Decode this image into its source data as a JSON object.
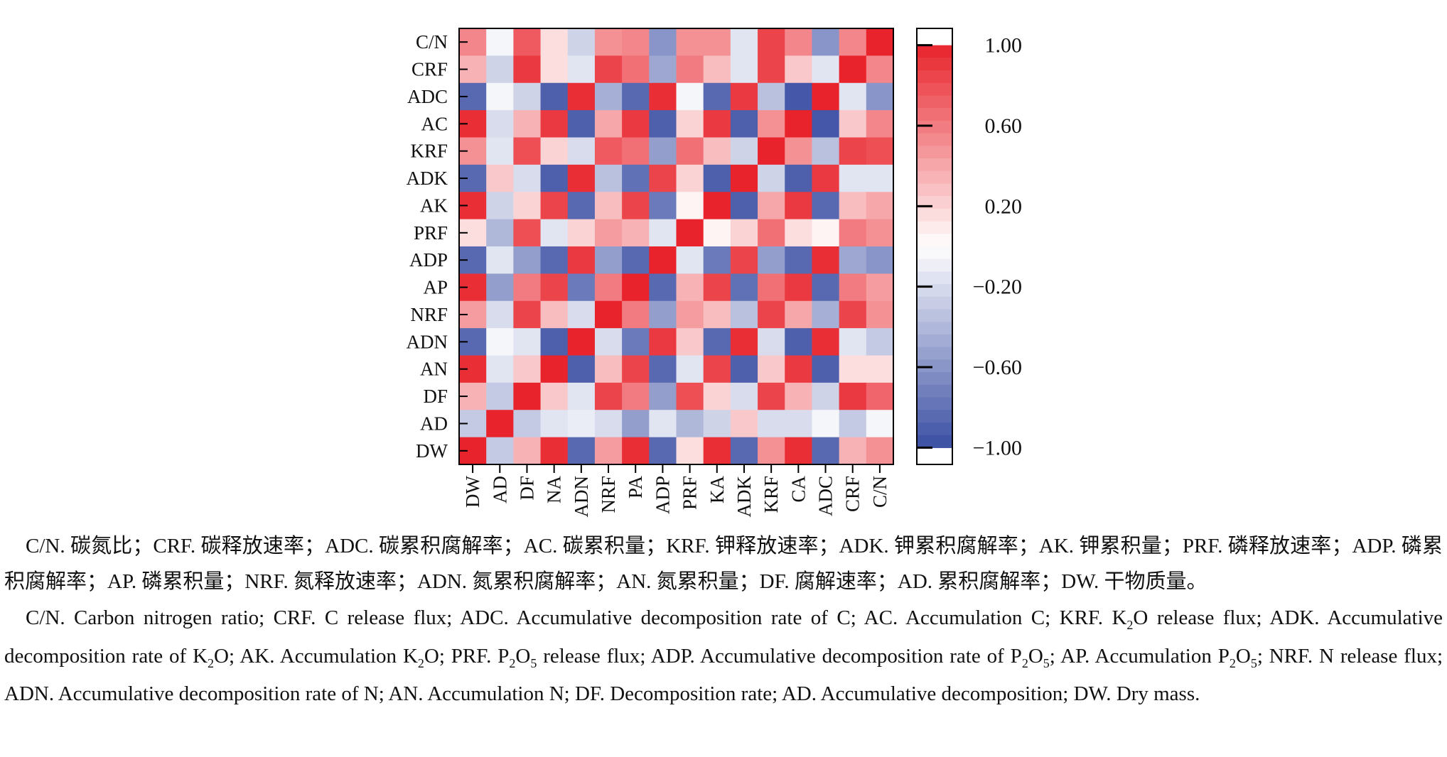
{
  "chart_data": {
    "type": "heatmap",
    "title": "",
    "x_labels": [
      "DW",
      "AD",
      "DF",
      "NA",
      "ADN",
      "NRF",
      "PA",
      "ADP",
      "PRF",
      "KA",
      "ADK",
      "KRF",
      "CA",
      "ADC",
      "CRF",
      "C/N"
    ],
    "y_labels_top_to_bottom": [
      "C/N",
      "CRF",
      "ADC",
      "AC",
      "KRF",
      "ADK",
      "AK",
      "PRF",
      "ADP",
      "AP",
      "NRF",
      "ADN",
      "AN",
      "DF",
      "AD",
      "DW"
    ],
    "values": [
      [
        0.55,
        -0.05,
        0.75,
        0.15,
        -0.25,
        0.5,
        0.55,
        -0.6,
        0.5,
        0.5,
        -0.15,
        0.85,
        0.55,
        -0.6,
        0.55,
        1.0
      ],
      [
        0.35,
        -0.25,
        0.9,
        0.15,
        -0.15,
        0.85,
        0.65,
        -0.5,
        0.6,
        0.3,
        -0.15,
        0.85,
        0.25,
        -0.15,
        1.0,
        0.55
      ],
      [
        -0.85,
        -0.05,
        -0.25,
        -0.9,
        0.95,
        -0.45,
        -0.85,
        0.95,
        -0.05,
        -0.85,
        0.9,
        -0.35,
        -0.95,
        1.0,
        -0.15,
        -0.6
      ],
      [
        0.95,
        -0.2,
        0.35,
        0.9,
        -0.9,
        0.4,
        0.9,
        -0.9,
        0.2,
        0.9,
        -0.9,
        0.5,
        1.0,
        -0.95,
        0.25,
        0.55
      ],
      [
        0.5,
        -0.15,
        0.8,
        0.2,
        -0.2,
        0.75,
        0.65,
        -0.55,
        0.65,
        0.3,
        -0.25,
        1.0,
        0.5,
        -0.35,
        0.85,
        0.8
      ],
      [
        -0.85,
        0.25,
        -0.2,
        -0.9,
        0.95,
        -0.35,
        -0.8,
        0.85,
        0.2,
        -0.9,
        1.0,
        -0.25,
        -0.9,
        0.9,
        -0.15,
        -0.15
      ],
      [
        0.95,
        -0.25,
        0.2,
        0.85,
        -0.85,
        0.3,
        0.85,
        -0.75,
        0.05,
        1.0,
        -0.9,
        0.4,
        0.9,
        -0.85,
        0.3,
        0.4
      ],
      [
        0.15,
        -0.4,
        0.8,
        -0.15,
        0.2,
        0.45,
        0.35,
        -0.15,
        1.0,
        0.05,
        0.2,
        0.65,
        0.15,
        0.05,
        0.6,
        0.5
      ],
      [
        -0.85,
        -0.15,
        -0.55,
        -0.85,
        0.9,
        -0.55,
        -0.85,
        1.0,
        -0.15,
        -0.75,
        0.85,
        -0.55,
        -0.85,
        0.95,
        -0.5,
        -0.6
      ],
      [
        0.95,
        -0.55,
        0.6,
        0.85,
        -0.75,
        0.6,
        1.0,
        -0.85,
        0.35,
        0.85,
        -0.8,
        0.65,
        0.9,
        -0.85,
        0.6,
        0.45
      ],
      [
        0.45,
        -0.2,
        0.85,
        0.3,
        -0.2,
        1.0,
        0.6,
        -0.55,
        0.45,
        0.3,
        -0.35,
        0.85,
        0.4,
        -0.45,
        0.85,
        0.5
      ],
      [
        -0.85,
        -0.05,
        -0.15,
        -0.9,
        1.0,
        -0.2,
        -0.75,
        0.9,
        0.25,
        -0.85,
        0.95,
        -0.2,
        -0.9,
        0.95,
        -0.15,
        -0.3
      ],
      [
        0.95,
        -0.15,
        0.25,
        1.0,
        -0.9,
        0.3,
        0.85,
        -0.85,
        -0.15,
        0.85,
        -0.9,
        0.25,
        0.9,
        -0.9,
        0.15,
        0.15
      ],
      [
        0.35,
        -0.3,
        1.0,
        0.25,
        -0.15,
        0.85,
        0.6,
        -0.55,
        0.8,
        0.2,
        -0.2,
        0.85,
        0.35,
        -0.25,
        0.9,
        0.7
      ],
      [
        -0.3,
        1.0,
        -0.3,
        -0.15,
        -0.1,
        -0.2,
        -0.55,
        -0.15,
        -0.4,
        -0.25,
        0.25,
        -0.2,
        -0.2,
        -0.05,
        -0.3,
        -0.05
      ],
      [
        1.0,
        -0.3,
        0.35,
        0.95,
        -0.85,
        0.45,
        0.95,
        -0.85,
        0.15,
        0.95,
        -0.85,
        0.5,
        0.95,
        -0.85,
        0.35,
        0.5
      ]
    ],
    "colorbar": {
      "ticks": [
        "1.00",
        "0.60",
        "0.20",
        "−0.20",
        "−0.60",
        "−1.00"
      ],
      "min": -1.0,
      "max": 1.0
    },
    "colors": {
      "positive": "#e8232b",
      "neutral": "#ffffff",
      "negative": "#3a4ea3"
    }
  },
  "captions": {
    "zh": "C/N. 碳氮比；CRF. 碳释放速率；ADC. 碳累积腐解率；AC. 碳累积量；KRF. 钾释放速率；ADK. 钾累积腐解率；AK. 钾累积量；PRF. 磷释放速率；ADP. 磷累积腐解率；AP. 磷累积量；NRF. 氮释放速率；ADN. 氮累积腐解率；AN. 氮累积量；DF. 腐解速率；AD. 累积腐解率；DW. 干物质量。",
    "en": [
      {
        "t": "C/N. Carbon nitrogen ratio; CRF. C release flux; ADC. Accumulative decomposition rate of C; AC. Accumulation C; KRF. K"
      },
      {
        "t": "2",
        "sub": true
      },
      {
        "t": "O release flux; ADK. Accumulative decomposition rate of K"
      },
      {
        "t": "2",
        "sub": true
      },
      {
        "t": "O; AK. Accumulation K"
      },
      {
        "t": "2",
        "sub": true
      },
      {
        "t": "O; PRF. P"
      },
      {
        "t": "2",
        "sub": true
      },
      {
        "t": "O"
      },
      {
        "t": "5",
        "sub": true
      },
      {
        "t": " release flux; ADP. Accumulative decomposition rate of P"
      },
      {
        "t": "2",
        "sub": true
      },
      {
        "t": "O"
      },
      {
        "t": "5",
        "sub": true
      },
      {
        "t": "; AP. Accumulation P"
      },
      {
        "t": "2",
        "sub": true
      },
      {
        "t": "O"
      },
      {
        "t": "5",
        "sub": true
      },
      {
        "t": "; NRF. N release flux; ADN. Accumulative decomposition rate of N; AN. Accumulation N; DF. Decomposition rate; AD. Accumulative decomposition; DW. Dry mass."
      }
    ]
  }
}
